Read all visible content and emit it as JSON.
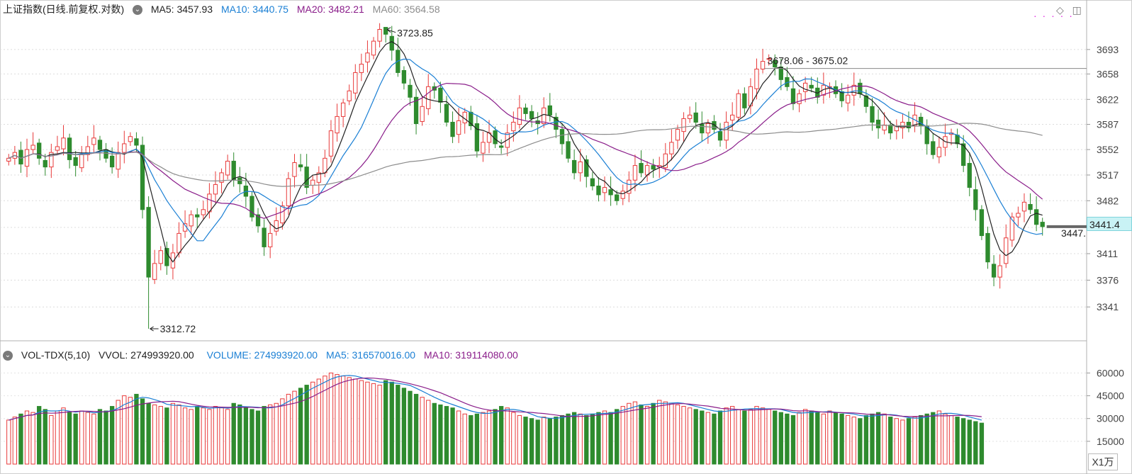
{
  "header": {
    "title": "上证指数(日线.前复权.对数)",
    "ma5": "MA5: 3457.93",
    "ma10": "MA10: 3440.75",
    "ma20": "MA20: 3482.21",
    "ma60": "MA60: 3564.58"
  },
  "volume_header": {
    "title": "VOL-TDX(5,10)",
    "vvol": "VVOL: 274993920.00",
    "volume": "VOLUME: 274993920.00",
    "ma5": "MA5: 316570016.00",
    "ma10": "MA10: 319114080.00"
  },
  "annotations": {
    "high": "3723.85",
    "low": "3312.72",
    "range": "3678.06 - 3675.02",
    "current": "3447.",
    "price_tag": "3441.4",
    "scale_unit": "X1万"
  },
  "colors": {
    "up": "#e83a3a",
    "down": "#2e8b2e",
    "ma5": "#222222",
    "ma10": "#1a7fd4",
    "ma20": "#8a1d8a",
    "ma60": "#8c8c8c"
  },
  "chart_data": [
    {
      "type": "candlestick",
      "y_axis_ticks": [
        3693,
        3658,
        3622,
        3587,
        3552,
        3517,
        3482,
        3446,
        3411,
        3376,
        3341
      ],
      "ylim": [
        3300,
        3740
      ],
      "scale": "log",
      "closes": [
        3540,
        3548,
        3532,
        3552,
        3558,
        3540,
        3528,
        3548,
        3556,
        3568,
        3538,
        3530,
        3545,
        3556,
        3568,
        3552,
        3540,
        3528,
        3548,
        3560,
        3570,
        3558,
        3470,
        3380,
        3398,
        3415,
        3395,
        3412,
        3438,
        3451,
        3463,
        3460,
        3470,
        3491,
        3504,
        3520,
        3536,
        3510,
        3505,
        3488,
        3460,
        3448,
        3420,
        3438,
        3455,
        3475,
        3512,
        3534,
        3528,
        3500,
        3510,
        3520,
        3540,
        3578,
        3598,
        3617,
        3634,
        3660,
        3672,
        3688,
        3705,
        3722,
        3715,
        3692,
        3660,
        3645,
        3625,
        3588,
        3612,
        3640,
        3635,
        3618,
        3590,
        3570,
        3592,
        3604,
        3585,
        3550,
        3562,
        3575,
        3560,
        3555,
        3575,
        3590,
        3610,
        3602,
        3595,
        3588,
        3610,
        3600,
        3580,
        3560,
        3540,
        3520,
        3535,
        3515,
        3502,
        3490,
        3500,
        3490,
        3482,
        3495,
        3510,
        3530,
        3520,
        3530,
        3525,
        3530,
        3546,
        3562,
        3580,
        3595,
        3600,
        3590,
        3575,
        3588,
        3580,
        3565,
        3590,
        3600,
        3630,
        3610,
        3640,
        3665,
        3676,
        3680,
        3668,
        3650,
        3640,
        3616,
        3630,
        3645,
        3638,
        3625,
        3642,
        3640,
        3630,
        3620,
        3628,
        3642,
        3630,
        3612,
        3590,
        3582,
        3586,
        3575,
        3585,
        3590,
        3582,
        3600,
        3585,
        3560,
        3545,
        3555,
        3570,
        3575,
        3560,
        3530,
        3500,
        3470,
        3435,
        3400,
        3380,
        3395,
        3432,
        3460,
        3465,
        3480,
        3470,
        3450,
        3447
      ],
      "high": 3723.85,
      "low": 3312.72,
      "ma_values": {
        "MA5": 3457.93,
        "MA10": 3440.75,
        "MA20": 3482.21,
        "MA60": 3564.58
      }
    },
    {
      "type": "bar",
      "y_axis_ticks": [
        60000,
        45000,
        30000,
        15000
      ],
      "unit": "X1万",
      "ylim": [
        0,
        70000
      ],
      "volumes": [
        29000,
        31000,
        33000,
        35000,
        34000,
        38000,
        36000,
        32000,
        35000,
        37000,
        34000,
        33000,
        35000,
        34000,
        33000,
        36000,
        35000,
        38000,
        42000,
        45000,
        44000,
        46000,
        43000,
        40000,
        39000,
        38000,
        37000,
        40000,
        39000,
        37000,
        36000,
        38000,
        37000,
        36000,
        38000,
        37000,
        36000,
        40000,
        39000,
        37000,
        36000,
        35000,
        38000,
        39000,
        40000,
        43000,
        46000,
        48000,
        50000,
        52000,
        54000,
        56000,
        58000,
        60000,
        59000,
        58000,
        57000,
        56000,
        55000,
        54000,
        53000,
        52000,
        55000,
        54000,
        52000,
        50000,
        48000,
        46000,
        44000,
        42000,
        40000,
        39000,
        38000,
        37000,
        35000,
        33000,
        32000,
        33000,
        34000,
        35000,
        36000,
        38000,
        37000,
        34000,
        32000,
        31000,
        30000,
        29000,
        31000,
        30000,
        31000,
        32000,
        33000,
        34000,
        33000,
        32000,
        33000,
        34000,
        35000,
        34000,
        36000,
        38000,
        40000,
        41000,
        39000,
        38000,
        40000,
        42000,
        41000,
        40000,
        39000,
        38000,
        37000,
        36000,
        35000,
        34000,
        33000,
        35000,
        37000,
        38000,
        36000,
        35000,
        36000,
        38000,
        37000,
        36000,
        35000,
        34000,
        33000,
        32000,
        34000,
        36000,
        35000,
        34000,
        33000,
        35000,
        34000,
        33000,
        32000,
        31000,
        30000,
        32000,
        33000,
        34000,
        33000,
        31000,
        30000,
        29000,
        30000,
        31000,
        32000,
        33000,
        34000,
        35000,
        33000,
        32000,
        31000,
        30000,
        29000,
        28000,
        27000
      ],
      "ma5": 316570016.0,
      "ma10": 319114080.0
    }
  ]
}
